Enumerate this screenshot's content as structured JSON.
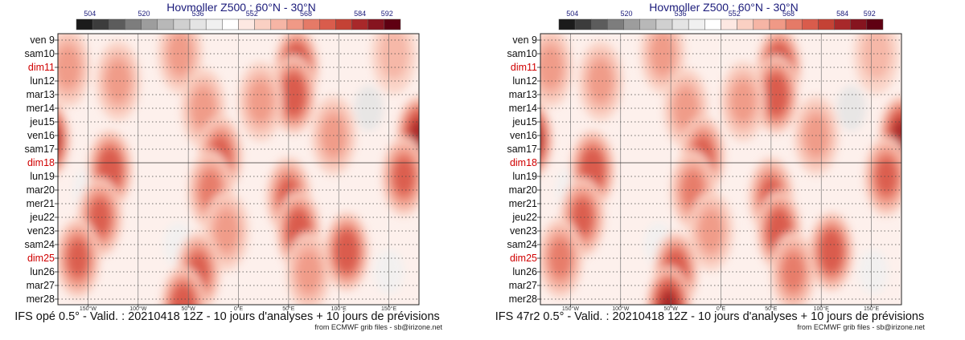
{
  "colors": {
    "scale": [
      "#1b1b1b",
      "#3c3c3c",
      "#5c5c5c",
      "#7d7d7d",
      "#9d9d9d",
      "#b8b8b8",
      "#d0d0d0",
      "#e4e4e4",
      "#f0f0f0",
      "#ffffff",
      "#fde8e2",
      "#fad0c3",
      "#f6b5a5",
      "#f09986",
      "#e57a67",
      "#d95c4c",
      "#c44235",
      "#a8282a",
      "#86141f",
      "#5f0012"
    ],
    "text": "#111111",
    "title": "#1a1a7a",
    "sunday": "#d00000"
  },
  "chart_data": [
    {
      "type": "heatmap",
      "title": "Hovmoller Z500 : 60°N - 30°N",
      "caption": "IFS opé 0.5° - Valid. : 20210418 12Z - 10 jours d'analyses + 10 jours de prévisions",
      "source": "from ECMWF grib files - sb@irizone.net",
      "colorbar_labels": [
        "504",
        "520",
        "536",
        "552",
        "568",
        "584",
        "592"
      ],
      "colorbar_label_values": [
        504,
        520,
        536,
        552,
        568,
        584,
        592
      ],
      "colorbar_range": [
        500,
        596
      ],
      "days": [
        "ven 9",
        "sam10",
        "dim11",
        "lun12",
        "mar13",
        "mer14",
        "jeu15",
        "ven16",
        "sam17",
        "dim18",
        "lun19",
        "mar20",
        "mer21",
        "jeu22",
        "ven23",
        "sam24",
        "dim25",
        "lun26",
        "mar27",
        "mer28"
      ],
      "sundays": [
        "dim11",
        "dim18",
        "dim25"
      ],
      "analysis_forecast_split": "dim18",
      "lon_labels": [
        "150°W",
        "100°W",
        "50°W",
        "0°E",
        "50°E",
        "100°E",
        "150°E"
      ],
      "lon_values": [
        -150,
        -100,
        -50,
        0,
        50,
        100,
        150
      ],
      "lon_range": [
        -180,
        180
      ],
      "ridges": [
        {
          "lon": -170,
          "day": 2,
          "value": 566
        },
        {
          "lon": -120,
          "day": 3,
          "value": 565
        },
        {
          "lon": -128,
          "day": 9.5,
          "value": 578
        },
        {
          "lon": -138,
          "day": 13,
          "value": 575
        },
        {
          "lon": -160,
          "day": 16,
          "value": 572
        },
        {
          "lon": -190,
          "day": 7.3,
          "value": 588
        },
        {
          "lon": 180,
          "day": 7,
          "value": 586
        },
        {
          "lon": -58,
          "day": 1,
          "value": 564
        },
        {
          "lon": -35,
          "day": 5,
          "value": 566
        },
        {
          "lon": -18,
          "day": 8.5,
          "value": 574
        },
        {
          "lon": -28,
          "day": 11,
          "value": 568
        },
        {
          "lon": -12,
          "day": 14,
          "value": 564
        },
        {
          "lon": -40,
          "day": 17,
          "value": 574
        },
        {
          "lon": -55,
          "day": 19.5,
          "value": 578
        },
        {
          "lon": 58,
          "day": 2,
          "value": 580
        },
        {
          "lon": 55,
          "day": 4,
          "value": 578
        },
        {
          "lon": 22,
          "day": 4.5,
          "value": 566
        },
        {
          "lon": 50,
          "day": 11.5,
          "value": 575
        },
        {
          "lon": 60,
          "day": 14,
          "value": 578
        },
        {
          "lon": 70,
          "day": 17,
          "value": 566
        },
        {
          "lon": 108,
          "day": 15.5,
          "value": 576
        },
        {
          "lon": 95,
          "day": 7,
          "value": 565
        },
        {
          "lon": 165,
          "day": 10,
          "value": 574
        },
        {
          "lon": 155,
          "day": 1,
          "value": 562
        }
      ],
      "troughs": [
        {
          "lon": 130,
          "day": 5,
          "value": 538
        },
        {
          "lon": -60,
          "day": 15,
          "value": 540
        },
        {
          "lon": 150,
          "day": 17,
          "value": 540
        },
        {
          "lon": -150,
          "day": 11,
          "value": 542
        }
      ]
    },
    {
      "type": "heatmap",
      "title": "Hovmoller Z500 : 60°N - 30°N",
      "caption": "IFS 47r2 0.5° - Valid. : 20210418 12Z - 10 jours d'analyses + 10 jours de prévisions",
      "source": "from ECMWF grib files - sb@irizone.net",
      "colorbar_labels": [
        "504",
        "520",
        "536",
        "552",
        "568",
        "584",
        "592"
      ],
      "colorbar_label_values": [
        504,
        520,
        536,
        552,
        568,
        584,
        592
      ],
      "colorbar_range": [
        500,
        596
      ],
      "days": [
        "ven 9",
        "sam10",
        "dim11",
        "lun12",
        "mar13",
        "mer14",
        "jeu15",
        "ven16",
        "sam17",
        "dim18",
        "lun19",
        "mar20",
        "mer21",
        "jeu22",
        "ven23",
        "sam24",
        "dim25",
        "lun26",
        "mar27",
        "mer28"
      ],
      "sundays": [
        "dim11",
        "dim18",
        "dim25"
      ],
      "analysis_forecast_split": "dim18",
      "lon_labels": [
        "150°W",
        "100°W",
        "50°W",
        "0°E",
        "50°E",
        "100°E",
        "150°E"
      ],
      "lon_values": [
        -150,
        -100,
        -50,
        0,
        50,
        100,
        150
      ],
      "lon_range": [
        -180,
        180
      ],
      "ridges": [
        {
          "lon": -170,
          "day": 2,
          "value": 566
        },
        {
          "lon": -120,
          "day": 3,
          "value": 565
        },
        {
          "lon": -128,
          "day": 9.5,
          "value": 578
        },
        {
          "lon": -138,
          "day": 13,
          "value": 575
        },
        {
          "lon": -160,
          "day": 16,
          "value": 568
        },
        {
          "lon": -190,
          "day": 7.3,
          "value": 588
        },
        {
          "lon": 180,
          "day": 7,
          "value": 586
        },
        {
          "lon": -58,
          "day": 1,
          "value": 564
        },
        {
          "lon": -35,
          "day": 5,
          "value": 566
        },
        {
          "lon": -18,
          "day": 8.5,
          "value": 574
        },
        {
          "lon": -28,
          "day": 11,
          "value": 568
        },
        {
          "lon": -10,
          "day": 14,
          "value": 566
        },
        {
          "lon": -45,
          "day": 17,
          "value": 576
        },
        {
          "lon": -52,
          "day": 19.5,
          "value": 586
        },
        {
          "lon": 58,
          "day": 2,
          "value": 580
        },
        {
          "lon": 55,
          "day": 4,
          "value": 578
        },
        {
          "lon": 22,
          "day": 4.5,
          "value": 566
        },
        {
          "lon": 50,
          "day": 11.5,
          "value": 575
        },
        {
          "lon": 58,
          "day": 14,
          "value": 576
        },
        {
          "lon": 72,
          "day": 17,
          "value": 568
        },
        {
          "lon": 110,
          "day": 15.5,
          "value": 578
        },
        {
          "lon": 95,
          "day": 7,
          "value": 565
        },
        {
          "lon": 165,
          "day": 10,
          "value": 574
        },
        {
          "lon": 155,
          "day": 1,
          "value": 562
        }
      ],
      "troughs": [
        {
          "lon": 130,
          "day": 5,
          "value": 538
        },
        {
          "lon": -62,
          "day": 15,
          "value": 540
        },
        {
          "lon": 152,
          "day": 17,
          "value": 540
        },
        {
          "lon": -150,
          "day": 11,
          "value": 542
        }
      ]
    }
  ]
}
